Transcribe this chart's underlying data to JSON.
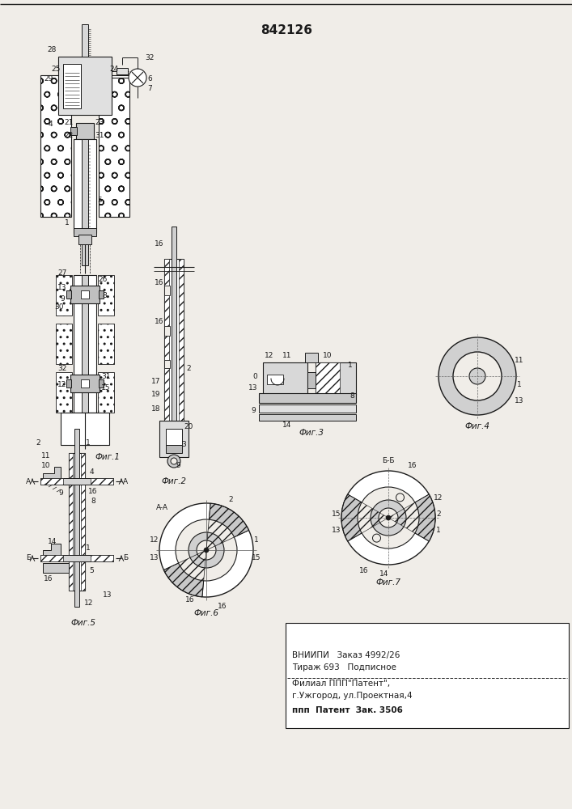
{
  "title": "842126",
  "bg_color": "#f0ede8",
  "line_color": "#1a1a1a",
  "fig_width": 7.07,
  "fig_height": 10.0,
  "footer_lines": [
    "ВНИИПИ   Заказ 4992/26",
    "Тираж 693   Подписное",
    "Филиал ППП\"Патент\",",
    "г.Ужгород, ул.Проектная,4",
    "ппп  Патент  Зак. 3506"
  ]
}
